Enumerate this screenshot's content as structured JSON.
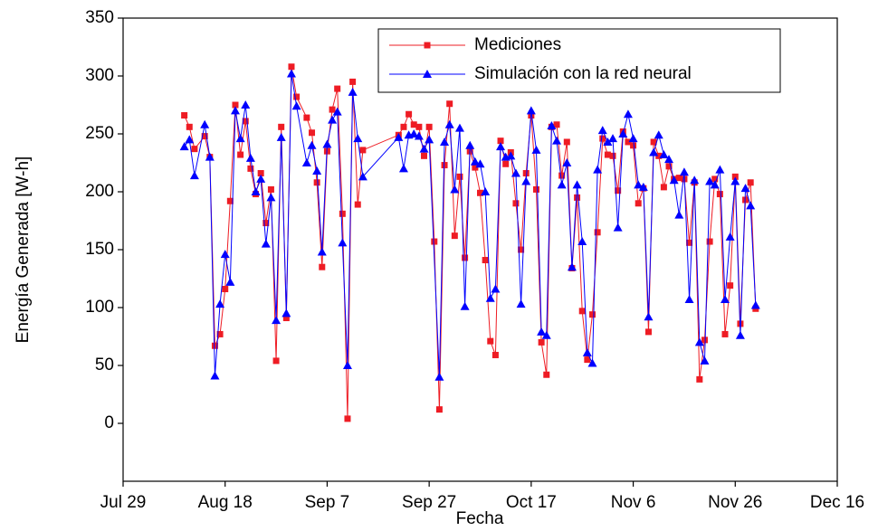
{
  "chart_data": {
    "type": "line",
    "ylabel": "Energía Generada [W-h]",
    "xlabel": "Fecha",
    "xlim": [
      0,
      140
    ],
    "xticks": [
      {
        "value": 0,
        "label": "Jul 29"
      },
      {
        "value": 20,
        "label": "Aug 18"
      },
      {
        "value": 40,
        "label": "Sep 7"
      },
      {
        "value": 60,
        "label": "Sep 27"
      },
      {
        "value": 80,
        "label": "Oct 17"
      },
      {
        "value": 100,
        "label": "Nov 6"
      },
      {
        "value": 120,
        "label": "Nov 26"
      },
      {
        "value": 140,
        "label": "Dec 16"
      }
    ],
    "ylim": [
      -50,
      350
    ],
    "yticks": [
      0,
      50,
      100,
      150,
      200,
      250,
      300,
      350
    ],
    "legend": "top-right",
    "series": [
      {
        "name": "Mediciones",
        "color": "#ee1c24",
        "marker": "square",
        "x": [
          12,
          13,
          14,
          16,
          17,
          18,
          19,
          20,
          21,
          22,
          23,
          24,
          25,
          26,
          27,
          28,
          29,
          30,
          31,
          32,
          33,
          34,
          36,
          37,
          38,
          39,
          40,
          41,
          42,
          43,
          44,
          45,
          46,
          47,
          54,
          55,
          56,
          57,
          58,
          59,
          60,
          61,
          62,
          63,
          64,
          65,
          66,
          67,
          68,
          69,
          70,
          71,
          72,
          73,
          74,
          75,
          76,
          77,
          78,
          79,
          80,
          81,
          82,
          83,
          84,
          85,
          86,
          87,
          88,
          89,
          90,
          91,
          92,
          93,
          94,
          95,
          96,
          97,
          98,
          99,
          100,
          101,
          102,
          103,
          104,
          105,
          106,
          107,
          108,
          109,
          110,
          111,
          112,
          113,
          114,
          115,
          116,
          117,
          118,
          119,
          120,
          121,
          122,
          123,
          124
        ],
        "values": [
          266,
          256,
          237,
          248,
          230,
          67,
          77,
          116,
          192,
          275,
          232,
          261,
          220,
          198,
          216,
          173,
          202,
          54,
          256,
          91,
          308,
          282,
          264,
          251,
          208,
          135,
          235,
          271,
          289,
          181,
          4,
          295,
          189,
          236,
          249,
          256,
          267,
          258,
          256,
          231,
          256,
          157,
          12,
          223,
          276,
          162,
          213,
          143,
          235,
          221,
          199,
          141,
          71,
          59,
          244,
          224,
          234,
          190,
          150,
          216,
          266,
          202,
          70,
          42,
          256,
          258,
          214,
          243,
          134,
          195,
          97,
          55,
          94,
          165,
          246,
          232,
          231,
          201,
          252,
          243,
          240,
          190,
          203,
          79,
          243,
          231,
          204,
          222,
          211,
          212,
          211,
          156,
          208,
          38,
          72,
          157,
          211,
          198,
          77,
          119,
          213,
          86,
          193,
          208,
          99
        ]
      },
      {
        "name": "Simulación con la red neural",
        "color": "#0000ff",
        "marker": "triangle",
        "x": [
          12,
          13,
          14,
          16,
          17,
          18,
          19,
          20,
          21,
          22,
          23,
          24,
          25,
          26,
          27,
          28,
          29,
          30,
          31,
          32,
          33,
          34,
          36,
          37,
          38,
          39,
          40,
          41,
          42,
          43,
          44,
          45,
          46,
          47,
          54,
          55,
          56,
          57,
          58,
          59,
          60,
          62,
          63,
          64,
          65,
          66,
          67,
          68,
          69,
          70,
          71,
          72,
          73,
          74,
          75,
          76,
          77,
          78,
          79,
          80,
          81,
          82,
          83,
          84,
          85,
          86,
          87,
          88,
          89,
          90,
          91,
          92,
          93,
          94,
          95,
          96,
          97,
          98,
          99,
          100,
          101,
          102,
          103,
          104,
          105,
          106,
          107,
          108,
          109,
          110,
          111,
          112,
          113,
          114,
          115,
          116,
          117,
          118,
          119,
          120,
          121,
          122,
          123,
          124
        ],
        "values": [
          239,
          245,
          214,
          258,
          230,
          41,
          103,
          146,
          122,
          270,
          246,
          275,
          229,
          200,
          211,
          155,
          195,
          89,
          247,
          95,
          302,
          274,
          225,
          240,
          218,
          148,
          241,
          262,
          269,
          156,
          50,
          286,
          246,
          213,
          247,
          220,
          249,
          250,
          248,
          237,
          245,
          40,
          243,
          258,
          202,
          255,
          101,
          240,
          226,
          224,
          200,
          108,
          116,
          239,
          230,
          231,
          216,
          103,
          209,
          270,
          236,
          79,
          76,
          257,
          244,
          206,
          225,
          135,
          206,
          157,
          61,
          52,
          219,
          253,
          243,
          246,
          169,
          250,
          267,
          246,
          206,
          204,
          92,
          234,
          249,
          232,
          228,
          210,
          180,
          217,
          107,
          210,
          70,
          54,
          209,
          206,
          219,
          107,
          161,
          209,
          76,
          203,
          188,
          102
        ]
      }
    ]
  }
}
